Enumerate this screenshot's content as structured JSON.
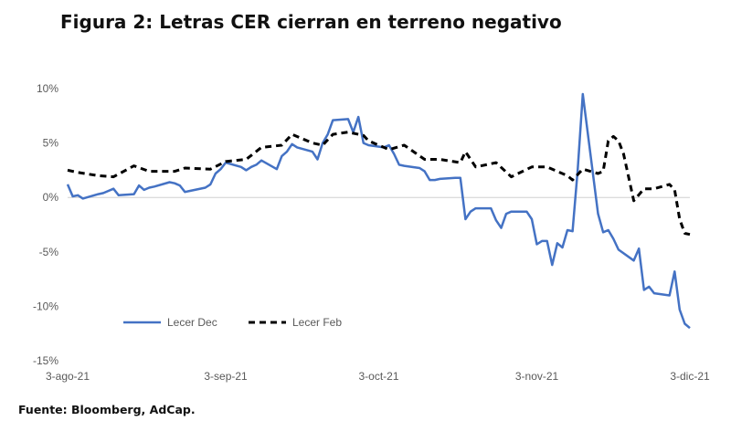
{
  "title": "Figura 2: Letras CER cierran en terreno negativo",
  "source": "Fuente: Bloomberg, AdCap.",
  "chart_data": {
    "type": "line",
    "title": "Figura 2: Letras CER cierran en terreno negativo",
    "xlabel": "",
    "ylabel": "",
    "x_range": [
      "2021-08-03",
      "2021-12-03"
    ],
    "x_ticks": [
      {
        "date": "2021-08-03",
        "label": "3-ago-21"
      },
      {
        "date": "2021-09-03",
        "label": "3-sep-21"
      },
      {
        "date": "2021-10-03",
        "label": "3-oct-21"
      },
      {
        "date": "2021-11-03",
        "label": "3-nov-21"
      },
      {
        "date": "2021-12-03",
        "label": "3-dic-21"
      }
    ],
    "ylim": [
      -15,
      10
    ],
    "y_ticks": [
      {
        "value": 10,
        "label": "10%"
      },
      {
        "value": 5,
        "label": "5%"
      },
      {
        "value": 0,
        "label": "0%"
      },
      {
        "value": -5,
        "label": "-5%"
      },
      {
        "value": -10,
        "label": "-10%"
      },
      {
        "value": -15,
        "label": "-15%"
      }
    ],
    "grid": false,
    "legend_position": "bottom-left",
    "series": [
      {
        "name": "Lecer Dec",
        "color": "#4472C4",
        "dash": "solid",
        "points": [
          [
            "2021-08-03",
            1.2
          ],
          [
            "2021-08-04",
            0.1
          ],
          [
            "2021-08-05",
            0.2
          ],
          [
            "2021-08-06",
            -0.1
          ],
          [
            "2021-08-09",
            0.3
          ],
          [
            "2021-08-10",
            0.4
          ],
          [
            "2021-08-11",
            0.6
          ],
          [
            "2021-08-12",
            0.8
          ],
          [
            "2021-08-13",
            0.2
          ],
          [
            "2021-08-16",
            0.3
          ],
          [
            "2021-08-17",
            1.1
          ],
          [
            "2021-08-18",
            0.7
          ],
          [
            "2021-08-19",
            0.9
          ],
          [
            "2021-08-20",
            1.0
          ],
          [
            "2021-08-23",
            1.4
          ],
          [
            "2021-08-24",
            1.3
          ],
          [
            "2021-08-25",
            1.1
          ],
          [
            "2021-08-26",
            0.5
          ],
          [
            "2021-08-27",
            0.6
          ],
          [
            "2021-08-30",
            0.9
          ],
          [
            "2021-08-31",
            1.2
          ],
          [
            "2021-09-01",
            2.2
          ],
          [
            "2021-09-02",
            2.6
          ],
          [
            "2021-09-03",
            3.2
          ],
          [
            "2021-09-06",
            2.8
          ],
          [
            "2021-09-07",
            2.5
          ],
          [
            "2021-09-08",
            2.8
          ],
          [
            "2021-09-09",
            3.0
          ],
          [
            "2021-09-10",
            3.4
          ],
          [
            "2021-09-13",
            2.6
          ],
          [
            "2021-09-14",
            3.8
          ],
          [
            "2021-09-15",
            4.2
          ],
          [
            "2021-09-16",
            4.9
          ],
          [
            "2021-09-17",
            4.6
          ],
          [
            "2021-09-20",
            4.2
          ],
          [
            "2021-09-21",
            3.5
          ],
          [
            "2021-09-22",
            5.0
          ],
          [
            "2021-09-23",
            5.8
          ],
          [
            "2021-09-24",
            7.1
          ],
          [
            "2021-09-27",
            7.2
          ],
          [
            "2021-09-28",
            6.0
          ],
          [
            "2021-09-29",
            7.4
          ],
          [
            "2021-09-30",
            5.0
          ],
          [
            "2021-10-01",
            4.8
          ],
          [
            "2021-10-04",
            4.6
          ],
          [
            "2021-10-05",
            4.8
          ],
          [
            "2021-10-06",
            4.0
          ],
          [
            "2021-10-07",
            3.0
          ],
          [
            "2021-10-08",
            2.9
          ],
          [
            "2021-10-11",
            2.7
          ],
          [
            "2021-10-12",
            2.4
          ],
          [
            "2021-10-13",
            1.6
          ],
          [
            "2021-10-14",
            1.6
          ],
          [
            "2021-10-15",
            1.7
          ],
          [
            "2021-10-18",
            1.8
          ],
          [
            "2021-10-19",
            1.8
          ],
          [
            "2021-10-20",
            -2.0
          ],
          [
            "2021-10-21",
            -1.3
          ],
          [
            "2021-10-22",
            -1.0
          ],
          [
            "2021-10-25",
            -1.0
          ],
          [
            "2021-10-26",
            -2.1
          ],
          [
            "2021-10-27",
            -2.8
          ],
          [
            "2021-10-28",
            -1.5
          ],
          [
            "2021-10-29",
            -1.3
          ],
          [
            "2021-11-01",
            -1.3
          ],
          [
            "2021-11-02",
            -2.0
          ],
          [
            "2021-11-03",
            -4.3
          ],
          [
            "2021-11-04",
            -4.0
          ],
          [
            "2021-11-05",
            -4.0
          ],
          [
            "2021-11-06",
            -6.2
          ],
          [
            "2021-11-07",
            -4.2
          ],
          [
            "2021-11-08",
            -4.6
          ],
          [
            "2021-11-09",
            -3.0
          ],
          [
            "2021-11-10",
            -3.1
          ],
          [
            "2021-11-11",
            2.5
          ],
          [
            "2021-11-12",
            9.5
          ],
          [
            "2021-11-15",
            -1.5
          ],
          [
            "2021-11-16",
            -3.2
          ],
          [
            "2021-11-17",
            -3.0
          ],
          [
            "2021-11-18",
            -3.8
          ],
          [
            "2021-11-19",
            -4.8
          ],
          [
            "2021-11-22",
            -5.8
          ],
          [
            "2021-11-23",
            -4.7
          ],
          [
            "2021-11-24",
            -8.5
          ],
          [
            "2021-11-25",
            -8.2
          ],
          [
            "2021-11-26",
            -8.8
          ],
          [
            "2021-11-29",
            -9.0
          ],
          [
            "2021-11-30",
            -6.8
          ],
          [
            "2021-12-01",
            -10.3
          ],
          [
            "2021-12-02",
            -11.6
          ],
          [
            "2021-12-03",
            -12.0
          ]
        ]
      },
      {
        "name": "Lecer Feb",
        "color": "#000000",
        "dash": "dashed",
        "points": [
          [
            "2021-08-03",
            2.5
          ],
          [
            "2021-08-05",
            2.3
          ],
          [
            "2021-08-09",
            2.0
          ],
          [
            "2021-08-12",
            1.9
          ],
          [
            "2021-08-16",
            2.9
          ],
          [
            "2021-08-19",
            2.4
          ],
          [
            "2021-08-24",
            2.4
          ],
          [
            "2021-08-26",
            2.7
          ],
          [
            "2021-08-31",
            2.6
          ],
          [
            "2021-09-03",
            3.3
          ],
          [
            "2021-09-07",
            3.5
          ],
          [
            "2021-09-10",
            4.6
          ],
          [
            "2021-09-14",
            4.8
          ],
          [
            "2021-09-16",
            5.8
          ],
          [
            "2021-09-20",
            5.0
          ],
          [
            "2021-09-22",
            4.8
          ],
          [
            "2021-09-24",
            5.8
          ],
          [
            "2021-09-27",
            6.0
          ],
          [
            "2021-09-30",
            5.7
          ],
          [
            "2021-10-01",
            5.2
          ],
          [
            "2021-10-05",
            4.4
          ],
          [
            "2021-10-08",
            4.8
          ],
          [
            "2021-10-12",
            3.5
          ],
          [
            "2021-10-15",
            3.5
          ],
          [
            "2021-10-19",
            3.2
          ],
          [
            "2021-10-20",
            4.2
          ],
          [
            "2021-10-22",
            2.8
          ],
          [
            "2021-10-26",
            3.2
          ],
          [
            "2021-10-29",
            1.9
          ],
          [
            "2021-11-02",
            2.8
          ],
          [
            "2021-11-05",
            2.8
          ],
          [
            "2021-11-09",
            2.0
          ],
          [
            "2021-11-10",
            1.6
          ],
          [
            "2021-11-12",
            2.6
          ],
          [
            "2021-11-15",
            2.2
          ],
          [
            "2021-11-16",
            2.4
          ],
          [
            "2021-11-17",
            5.2
          ],
          [
            "2021-11-18",
            5.6
          ],
          [
            "2021-11-19",
            5.2
          ],
          [
            "2021-11-20",
            4.0
          ],
          [
            "2021-11-22",
            -0.3
          ],
          [
            "2021-11-24",
            0.8
          ],
          [
            "2021-11-26",
            0.8
          ],
          [
            "2021-11-29",
            1.2
          ],
          [
            "2021-11-30",
            0.7
          ],
          [
            "2021-12-01",
            -2.0
          ],
          [
            "2021-12-02",
            -3.3
          ],
          [
            "2021-12-03",
            -3.4
          ]
        ]
      }
    ]
  }
}
